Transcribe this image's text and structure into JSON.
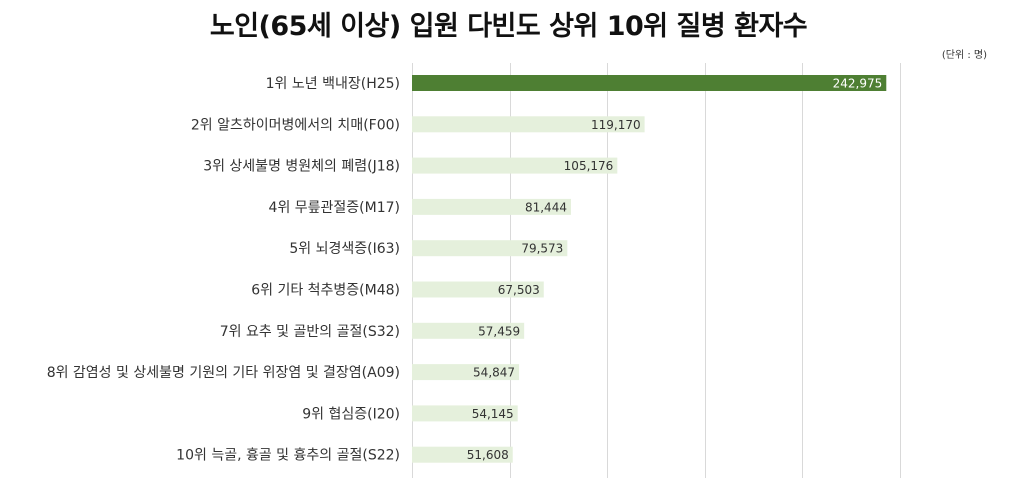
{
  "chart_data": {
    "type": "bar",
    "orientation": "horizontal",
    "title": "노인(65세 이상) 입원 다빈도 상위 10위 질병 환자수",
    "unit_note": "(단위 : 명)",
    "categories": [
      "1위 노년 백내장(H25)",
      "2위 알츠하이머병에서의 치매(F00)",
      "3위 상세불명 병원체의 폐렴(J18)",
      "4위 무릎관절증(M17)",
      "5위 뇌경색증(I63)",
      "6위 기타 척추병증(M48)",
      "7위 요추 및 골반의 골절(S32)",
      "8위 감염성 및 상세불명 기원의 기타 위장염 및 결장염(A09)",
      "9위 협심증(I20)",
      "10위 늑골, 흉골 및 흉추의 골절(S22)"
    ],
    "values": [
      242975,
      119170,
      105176,
      81444,
      79573,
      67503,
      57459,
      54847,
      54145,
      51608
    ],
    "value_labels": [
      "242,975",
      "119,170",
      "105,176",
      "81,444",
      "79,573",
      "67,503",
      "57,459",
      "54,847",
      "54,145",
      "51,608"
    ],
    "xlim": [
      0,
      250000
    ],
    "grid": true,
    "colors": {
      "highlight": "#4e7f33",
      "bar": "#e5f0dc",
      "grid": "#d9d9d9"
    }
  }
}
